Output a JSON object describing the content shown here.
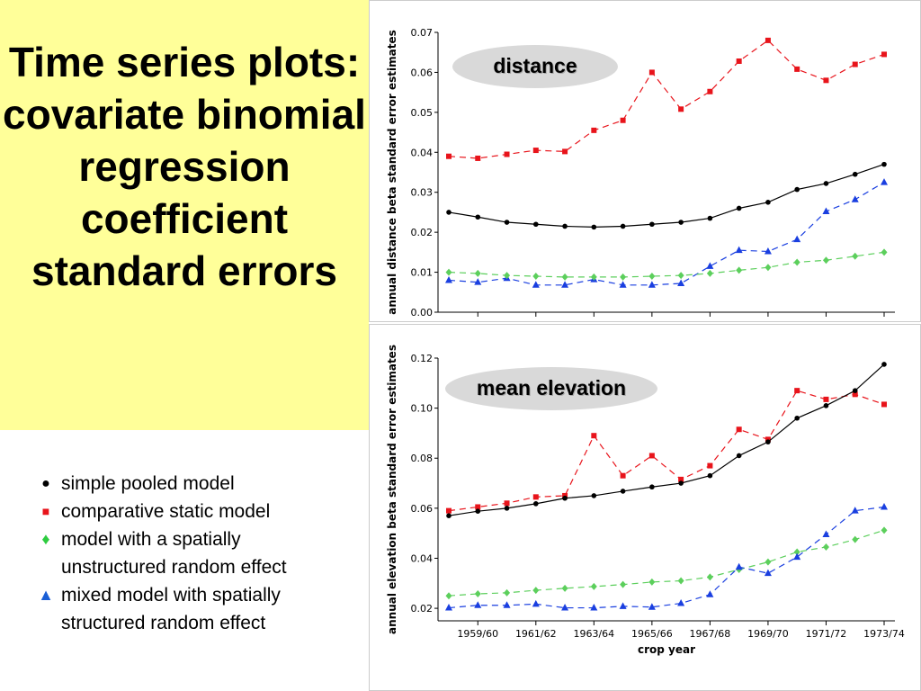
{
  "slide": {
    "title": "Time series plots: covariate binomial regression coefficient standard errors"
  },
  "legend": {
    "items": [
      {
        "symbol": "●",
        "color": "#000000",
        "label": "simple pooled model"
      },
      {
        "symbol": "■",
        "color": "#e8141b",
        "label": "comparative static model"
      },
      {
        "symbol": "♦",
        "color": "#2ecc40",
        "label": "model with a spatially\nunstructured random effect"
      },
      {
        "symbol": "▲",
        "color": "#1a5fd6",
        "label": "mixed model with spatially\nstructured random effect"
      }
    ]
  },
  "colors": {
    "simple": "#000000",
    "comparative": "#e8141b",
    "unstructured": "#5ccf5c",
    "mixed": "#1a3fe0",
    "title_bg": "#ffff99",
    "badge": "#d9d9d9"
  },
  "chart_data": [
    {
      "type": "line",
      "badge": "distance",
      "ylabel": "annual distance beta standard error estimates",
      "xlabel": "",
      "ylim": [
        0,
        0.07
      ],
      "yticks": [
        "0.00",
        "0.01",
        "0.02",
        "0.03",
        "0.04",
        "0.05",
        "0.06",
        "0.07"
      ],
      "xtick_labels": [],
      "x_count": 16,
      "series": [
        {
          "key": "comparative",
          "marker": "square",
          "dash": true,
          "values": [
            0.039,
            0.0385,
            0.0395,
            0.0405,
            0.0402,
            0.0455,
            0.048,
            0.06,
            0.0508,
            0.0552,
            0.0628,
            0.068,
            0.0608,
            0.058,
            0.062,
            0.0645
          ]
        },
        {
          "key": "simple",
          "marker": "circle",
          "dash": false,
          "values": [
            0.025,
            0.0238,
            0.0225,
            0.022,
            0.0215,
            0.0213,
            0.0215,
            0.022,
            0.0225,
            0.0235,
            0.026,
            0.0275,
            0.0307,
            0.0322,
            0.0345,
            0.037
          ]
        },
        {
          "key": "mixed",
          "marker": "triangle",
          "dash": true,
          "values": [
            0.008,
            0.0075,
            0.0085,
            0.0068,
            0.0068,
            0.0082,
            0.0068,
            0.0068,
            0.0072,
            0.0115,
            0.0155,
            0.0152,
            0.0182,
            0.0252,
            0.0282,
            0.0325
          ]
        },
        {
          "key": "unstructured",
          "marker": "diamond",
          "dash": true,
          "values": [
            0.01,
            0.0097,
            0.0092,
            0.009,
            0.0088,
            0.0088,
            0.0088,
            0.009,
            0.0092,
            0.0097,
            0.0105,
            0.0112,
            0.0125,
            0.013,
            0.014,
            0.015
          ]
        }
      ]
    },
    {
      "type": "line",
      "badge": "mean elevation",
      "ylabel": "annual elevation beta standard error estimates",
      "xlabel": "crop year",
      "ylim": [
        0.015,
        0.12
      ],
      "yticks": [
        "0.02",
        "0.04",
        "0.06",
        "0.08",
        "0.10",
        "0.12"
      ],
      "xtick_labels": [
        "1959/60",
        "1961/62",
        "1963/64",
        "1965/66",
        "1967/68",
        "1969/70",
        "1971/72",
        "1973/74"
      ],
      "x_count": 16,
      "series": [
        {
          "key": "comparative",
          "marker": "square",
          "dash": true,
          "values": [
            0.059,
            0.0605,
            0.062,
            0.0645,
            0.065,
            0.089,
            0.073,
            0.081,
            0.0715,
            0.077,
            0.0915,
            0.0875,
            0.107,
            0.1035,
            0.1055,
            0.1015
          ]
        },
        {
          "key": "simple",
          "marker": "circle",
          "dash": false,
          "values": [
            0.057,
            0.0588,
            0.06,
            0.0618,
            0.064,
            0.065,
            0.0668,
            0.0685,
            0.07,
            0.073,
            0.081,
            0.0865,
            0.096,
            0.101,
            0.107,
            0.1175
          ]
        },
        {
          "key": "unstructured",
          "marker": "diamond",
          "dash": true,
          "values": [
            0.025,
            0.0258,
            0.0262,
            0.0272,
            0.028,
            0.0287,
            0.0295,
            0.0305,
            0.031,
            0.0325,
            0.0355,
            0.0385,
            0.0425,
            0.0445,
            0.0475,
            0.0512
          ]
        },
        {
          "key": "mixed",
          "marker": "triangle",
          "dash": true,
          "values": [
            0.0202,
            0.0212,
            0.0212,
            0.0217,
            0.0202,
            0.0202,
            0.0208,
            0.0205,
            0.022,
            0.0255,
            0.0365,
            0.034,
            0.0405,
            0.0495,
            0.059,
            0.0605
          ]
        }
      ]
    }
  ]
}
